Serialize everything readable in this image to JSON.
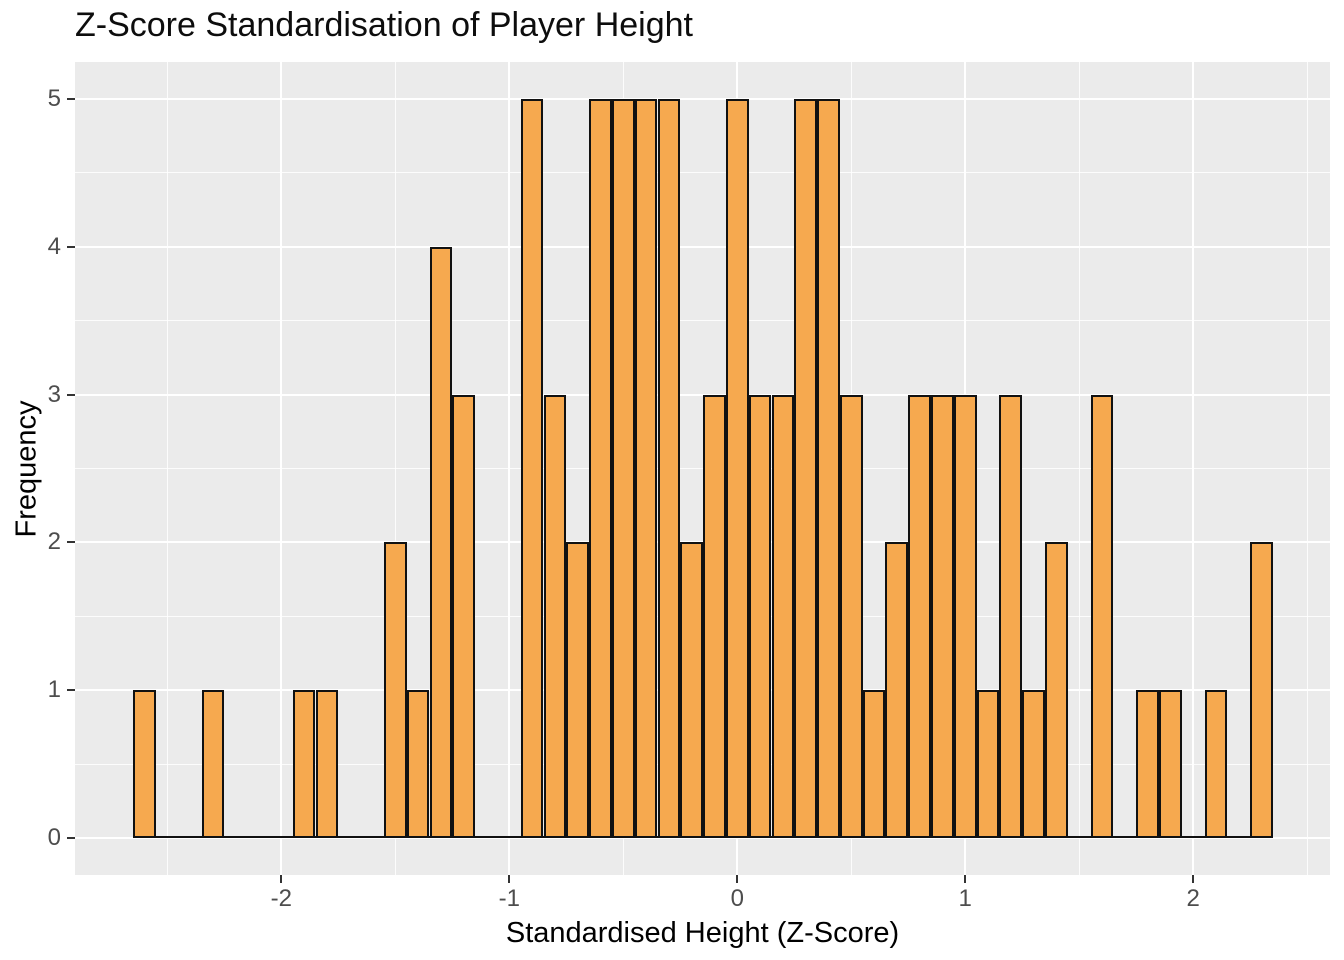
{
  "chart_data": {
    "type": "bar",
    "subtype": "histogram",
    "title": "Z-Score Standardisation of Player Height",
    "xlabel": "Standardised Height (Z-Score)",
    "ylabel": "Frequency",
    "x_ticks": [
      -2,
      -1,
      0,
      1,
      2
    ],
    "x_tick_labels": [
      "-2",
      "-1",
      "0",
      "1",
      "2"
    ],
    "y_ticks": [
      0,
      1,
      2,
      3,
      4,
      5
    ],
    "y_tick_labels": [
      "0",
      "1",
      "2",
      "3",
      "4",
      "5"
    ],
    "x_minor_gridlines": [
      -2.5,
      -1.5,
      -0.5,
      0.5,
      1.5,
      2.5
    ],
    "y_minor_gridlines": [
      0.5,
      1.5,
      2.5,
      3.5,
      4.5
    ],
    "xlim": [
      -2.905,
      2.6
    ],
    "ylim": [
      -0.25,
      5.25
    ],
    "bin_width": 0.1,
    "grid": true,
    "legend": "none",
    "bins": {
      "centers": [
        -2.6,
        -2.3,
        -1.9,
        -1.8,
        -1.5,
        -1.4,
        -1.3,
        -1.2,
        -0.9,
        -0.8,
        -0.7,
        -0.6,
        -0.5,
        -0.4,
        -0.3,
        -0.2,
        -0.1,
        0.0,
        0.1,
        0.2,
        0.3,
        0.4,
        0.5,
        0.6,
        0.7,
        0.8,
        0.9,
        1.0,
        1.1,
        1.2,
        1.3,
        1.4,
        1.6,
        1.8,
        1.9,
        2.1,
        2.3
      ],
      "counts": [
        1,
        1,
        1,
        1,
        2,
        1,
        4,
        3,
        5,
        3,
        2,
        5,
        5,
        5,
        5,
        2,
        3,
        5,
        3,
        3,
        5,
        5,
        3,
        1,
        2,
        3,
        3,
        3,
        1,
        3,
        1,
        2,
        3,
        1,
        1,
        1,
        2
      ]
    },
    "colors": {
      "bar_fill": "#F6A94F",
      "bar_border": "#111111",
      "panel_bg": "#EBEBEB",
      "grid": "#FFFFFF",
      "tick_mark": "#333333",
      "tick_label": "#4D4D4D",
      "axis_title": "#000000",
      "title": "#0D0D0D"
    }
  }
}
